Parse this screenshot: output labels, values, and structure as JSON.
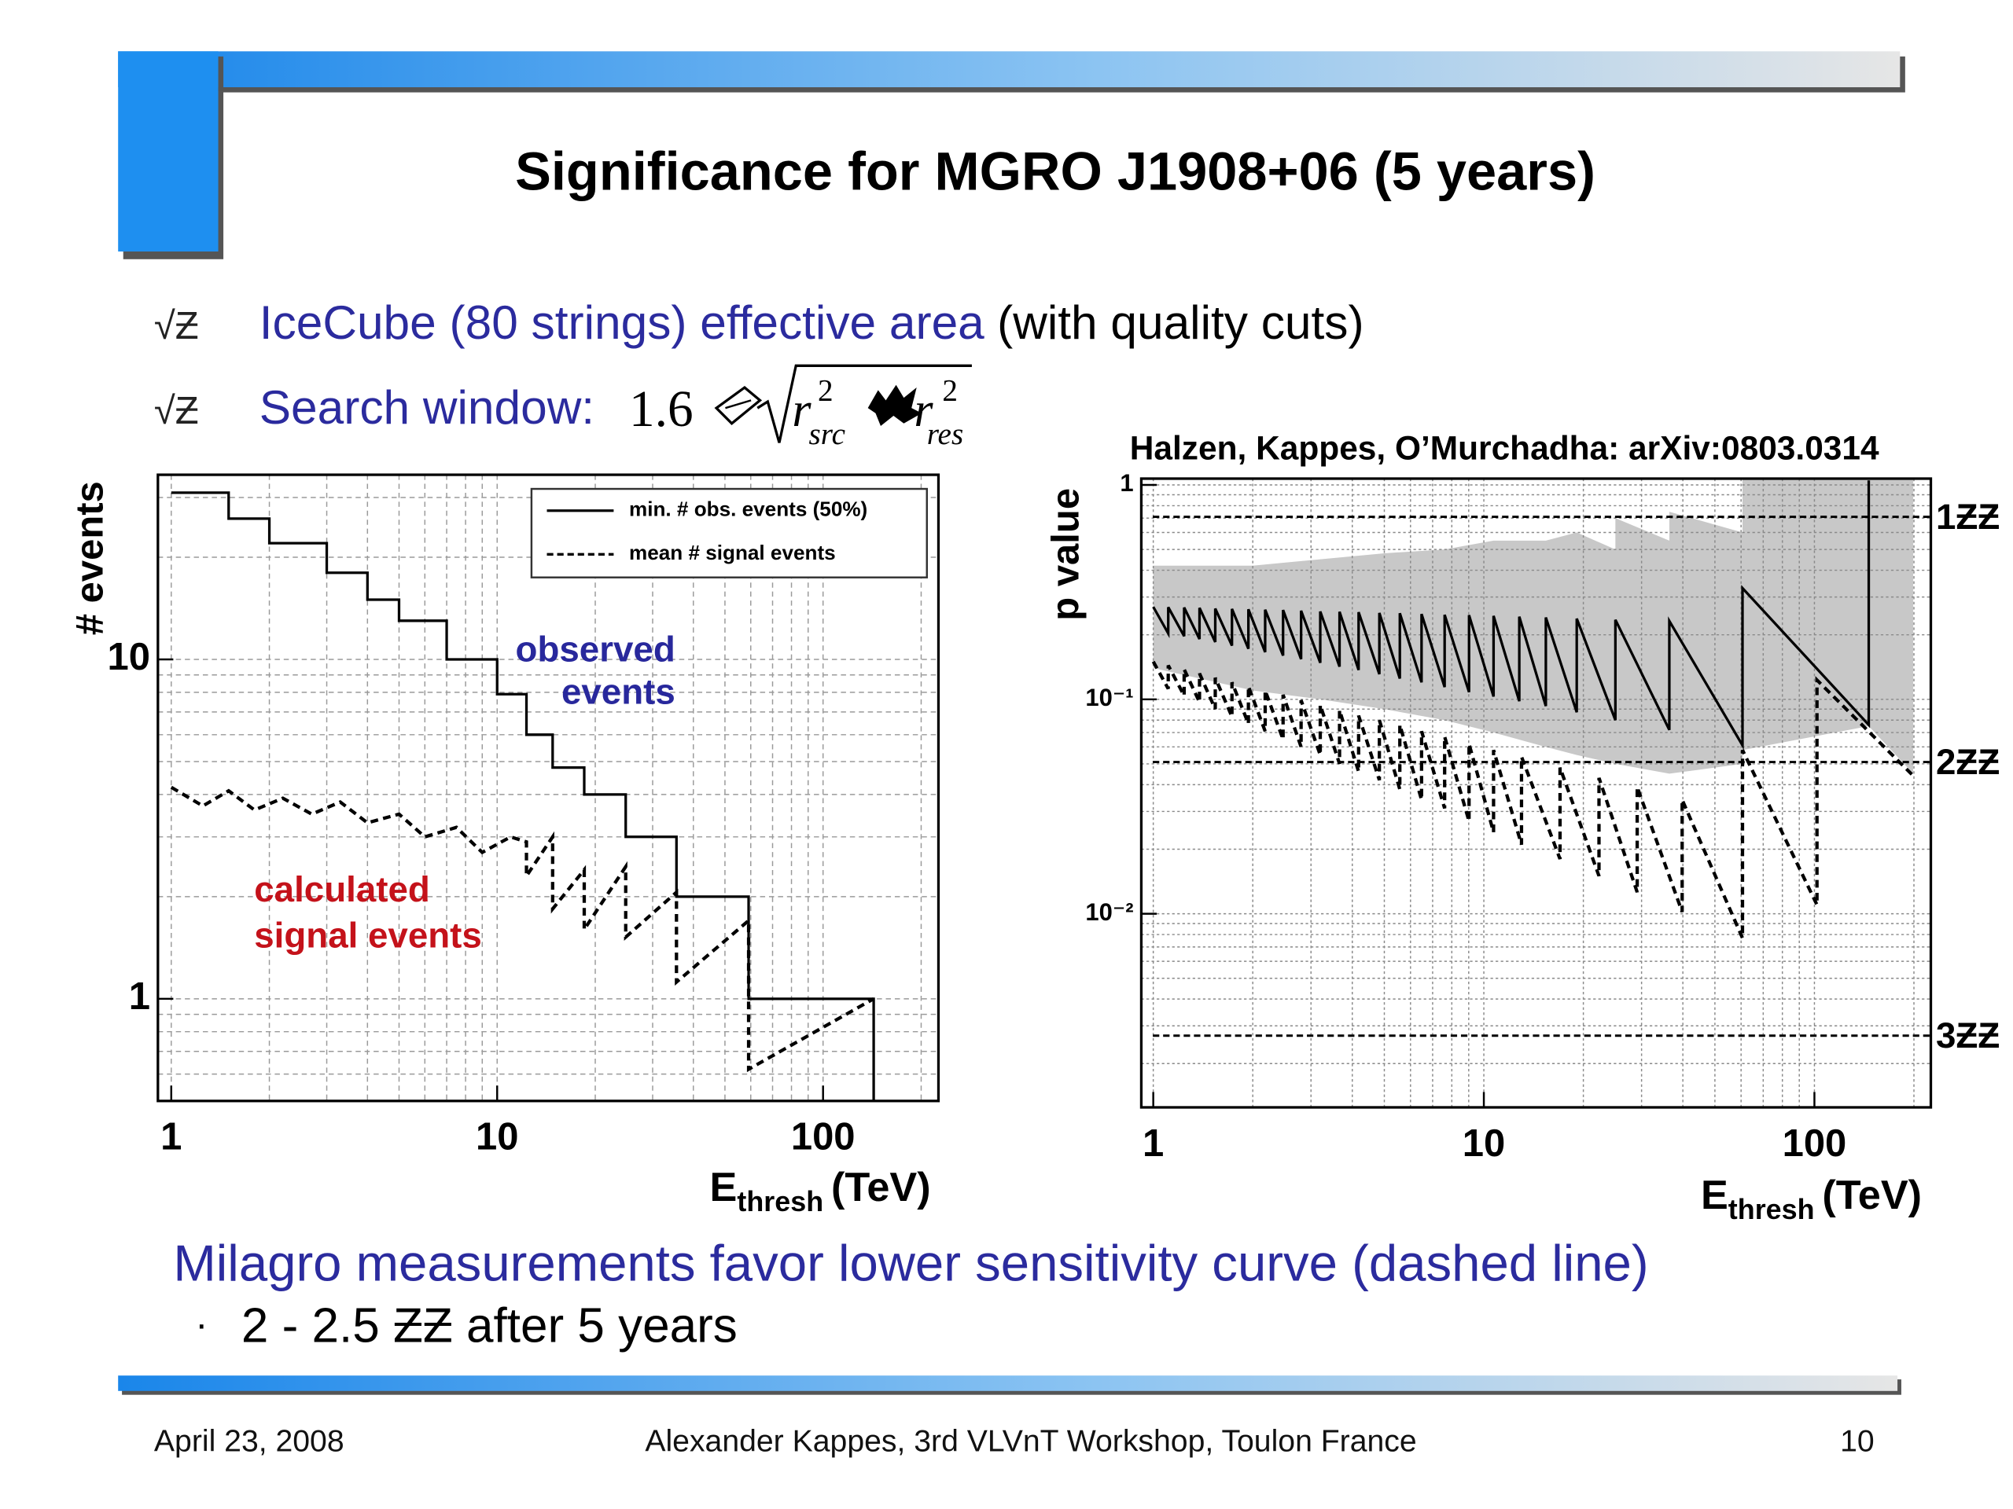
{
  "slide": {
    "title": "Significance for MGRO J1908+06 (5 years)",
    "bullets": [
      {
        "marker": "√Ƶ",
        "parts": [
          "IceCube (80 strings) effective area",
          "(with quality cuts)"
        ]
      },
      {
        "marker": "√Ƶ",
        "label": "Search window:",
        "formula": {
          "coef": "1.6",
          "terms": [
            {
              "base": "r",
              "sup": "2",
              "sub": "src"
            },
            {
              "base": "r",
              "sup": "2",
              "sub": "res"
            }
          ]
        }
      }
    ],
    "conclusion": "Milagro measurements favor lower sensitivity curve (dashed line)",
    "subbullet": {
      "marker": "·",
      "text": "2 - 2.5 ƵƵ after 5 years"
    },
    "footer": {
      "date": "April 23, 2008",
      "center": "Alexander Kappes, 3rd VLVnT Workshop, Toulon France",
      "page": "10"
    }
  },
  "chart_data": [
    {
      "type": "line",
      "xscale": "log",
      "yscale": "log",
      "ylabel": "# events",
      "xlabel": {
        "text": "E",
        "sub": "thresh",
        "unit": "(TeV)"
      },
      "xlim": [
        0.91,
        226
      ],
      "ylim": [
        0.5,
        35
      ],
      "xticks": [
        1,
        10,
        100
      ],
      "yticks": [
        1,
        10
      ],
      "xminor": [
        2,
        3,
        4,
        5,
        6,
        7,
        8,
        9,
        20,
        30,
        40,
        50,
        60,
        70,
        80,
        90,
        200
      ],
      "yminor": [
        0.6,
        0.7,
        0.8,
        0.9,
        2,
        3,
        4,
        5,
        6,
        7,
        8,
        9,
        20,
        30
      ],
      "grid": true,
      "legend": "upper right",
      "series": [
        {
          "name": "min. # obs. events (50%)",
          "color": "#000000",
          "linestyle": "solid",
          "x": [
            1,
            1.5,
            1.5,
            2,
            2,
            3,
            3,
            4,
            4,
            5,
            5,
            7,
            7,
            10,
            10,
            12.3,
            12.3,
            14.8,
            14.8,
            18.5,
            18.5,
            24.8,
            24.8,
            35.5,
            35.5,
            59.1,
            59.1,
            143,
            143
          ],
          "values": [
            31,
            31,
            26,
            26,
            22,
            22,
            18,
            18,
            15,
            15,
            13,
            13,
            10,
            10,
            7.9,
            7.9,
            6.0,
            6.0,
            4.8,
            4.8,
            4.0,
            4.0,
            3.0,
            3.0,
            2.0,
            2.0,
            1.0,
            1.0,
            0.5
          ]
        },
        {
          "name": "mean # signal events",
          "color": "#000000",
          "linestyle": "dashed",
          "x": [
            1,
            1.25,
            1.5,
            1.8,
            2.2,
            2.7,
            3.3,
            4,
            5,
            6,
            7.5,
            9,
            11,
            12.3,
            12.3,
            14.8,
            14.8,
            18.5,
            18.5,
            24.8,
            24.8,
            35.5,
            35.5,
            59.1,
            59.1,
            143
          ],
          "values": [
            4.2,
            3.7,
            4.1,
            3.6,
            3.9,
            3.5,
            3.8,
            3.3,
            3.5,
            3.0,
            3.2,
            2.7,
            3.0,
            2.9,
            2.3,
            3.0,
            1.84,
            2.4,
            1.6,
            2.45,
            1.52,
            2.06,
            1.12,
            1.7,
            0.62,
            1.0
          ]
        }
      ],
      "annotations": [
        {
          "lines": [
            "observed",
            "events"
          ],
          "color": "#28289c"
        },
        {
          "lines": [
            "calculated",
            "signal events"
          ],
          "color": "#c4121a"
        }
      ]
    },
    {
      "type": "line",
      "xscale": "log",
      "yscale": "log",
      "title": "Halzen, Kappes, O’Murchadha: arXiv:0803.0314",
      "ylabel": "p value",
      "xlabel": {
        "text": "E",
        "sub": "thresh",
        "unit": "(TeV)"
      },
      "xlim": [
        0.92,
        225
      ],
      "ylim": [
        0.00125,
        1.07
      ],
      "xticks": [
        1,
        10,
        100
      ],
      "yticks": [
        {
          "value": 0.01,
          "label": "10⁻²"
        },
        {
          "value": 0.1,
          "label": "10⁻¹"
        },
        1
      ],
      "xminor": [
        2,
        3,
        4,
        5,
        6,
        7,
        8,
        9,
        20,
        30,
        40,
        50,
        60,
        70,
        80,
        90,
        200
      ],
      "yminor": [
        0.002,
        0.003,
        0.004,
        0.005,
        0.006,
        0.007,
        0.008,
        0.009,
        0.02,
        0.03,
        0.04,
        0.05,
        0.06,
        0.07,
        0.08,
        0.09,
        0.2,
        0.3,
        0.4,
        0.5,
        0.6,
        0.7,
        0.8,
        0.9
      ],
      "grid": true,
      "hlines": [
        {
          "value": 0.71,
          "label": "1ƵƵ"
        },
        {
          "value": 0.051,
          "label": "2ƵƵ"
        },
        {
          "value": 0.0027,
          "label": "3ƵƵ"
        }
      ],
      "band": {
        "color": "#c8c8c8",
        "x": [
          1,
          2,
          3.2,
          5,
          7.6,
          10.7,
          15.4,
          19.1,
          25,
          25,
          36.4,
          36.4,
          60.6,
          60.6,
          146,
          199
        ],
        "upper": [
          0.42,
          0.42,
          0.45,
          0.48,
          0.5,
          0.55,
          0.55,
          0.6,
          0.5,
          0.7,
          0.55,
          0.75,
          0.6,
          1.07,
          1.07,
          1.07
        ],
        "lower": [
          0.14,
          0.11,
          0.1,
          0.09,
          0.08,
          0.07,
          0.06,
          0.055,
          0.05,
          0.05,
          0.045,
          0.045,
          0.05,
          0.058,
          0.075,
          0.045
        ]
      },
      "series": [
        {
          "color": "#000000",
          "linestyle": "solid",
          "x": [
            1,
            1.11,
            1.11,
            1.24,
            1.24,
            1.38,
            1.38,
            1.54,
            1.54,
            1.73,
            1.73,
            1.94,
            1.94,
            2.18,
            2.18,
            2.47,
            2.47,
            2.8,
            2.8,
            3.2,
            3.2,
            3.66,
            3.66,
            4.18,
            4.18,
            4.83,
            4.83,
            5.57,
            5.57,
            6.48,
            6.48,
            7.61,
            7.61,
            9.02,
            9.02,
            10.7,
            10.7,
            12.8,
            12.8,
            15.4,
            15.4,
            19.1,
            19.1,
            25,
            25,
            36.4,
            36.4,
            60.6,
            60.6,
            146,
            146
          ],
          "values": [
            0.27,
            0.203,
            0.269,
            0.197,
            0.268,
            0.191,
            0.267,
            0.185,
            0.265,
            0.178,
            0.264,
            0.172,
            0.263,
            0.166,
            0.262,
            0.16,
            0.261,
            0.154,
            0.259,
            0.148,
            0.257,
            0.142,
            0.256,
            0.137,
            0.255,
            0.131,
            0.253,
            0.125,
            0.252,
            0.12,
            0.25,
            0.114,
            0.248,
            0.108,
            0.247,
            0.103,
            0.245,
            0.098,
            0.243,
            0.093,
            0.241,
            0.087,
            0.238,
            0.08,
            0.235,
            0.072,
            0.232,
            0.061,
            0.33,
            0.076,
            1.05
          ]
        },
        {
          "color": "#000000",
          "linestyle": "dashed",
          "x": [
            1,
            1.11,
            1.11,
            1.24,
            1.24,
            1.38,
            1.38,
            1.54,
            1.54,
            1.73,
            1.73,
            1.94,
            1.94,
            2.18,
            2.18,
            2.47,
            2.47,
            2.8,
            2.8,
            3.2,
            3.2,
            3.66,
            3.66,
            4.18,
            4.18,
            4.83,
            4.83,
            5.57,
            5.57,
            6.48,
            6.48,
            7.61,
            7.61,
            9.02,
            9.02,
            10.7,
            10.7,
            13,
            13,
            17,
            17,
            22.3,
            22.3,
            29.1,
            29.1,
            39.8,
            39.8,
            60.6,
            60.6,
            101.8,
            101.8,
            199
          ],
          "values": [
            0.15,
            0.112,
            0.144,
            0.104,
            0.138,
            0.097,
            0.132,
            0.09,
            0.126,
            0.083,
            0.12,
            0.077,
            0.115,
            0.071,
            0.11,
            0.065,
            0.105,
            0.06,
            0.099,
            0.055,
            0.094,
            0.05,
            0.089,
            0.046,
            0.084,
            0.042,
            0.08,
            0.038,
            0.076,
            0.034,
            0.071,
            0.031,
            0.067,
            0.027,
            0.062,
            0.024,
            0.058,
            0.021,
            0.054,
            0.018,
            0.048,
            0.015,
            0.043,
            0.0126,
            0.039,
            0.0102,
            0.034,
            0.0077,
            0.058,
            0.011,
            0.123,
            0.044
          ]
        }
      ]
    }
  ]
}
